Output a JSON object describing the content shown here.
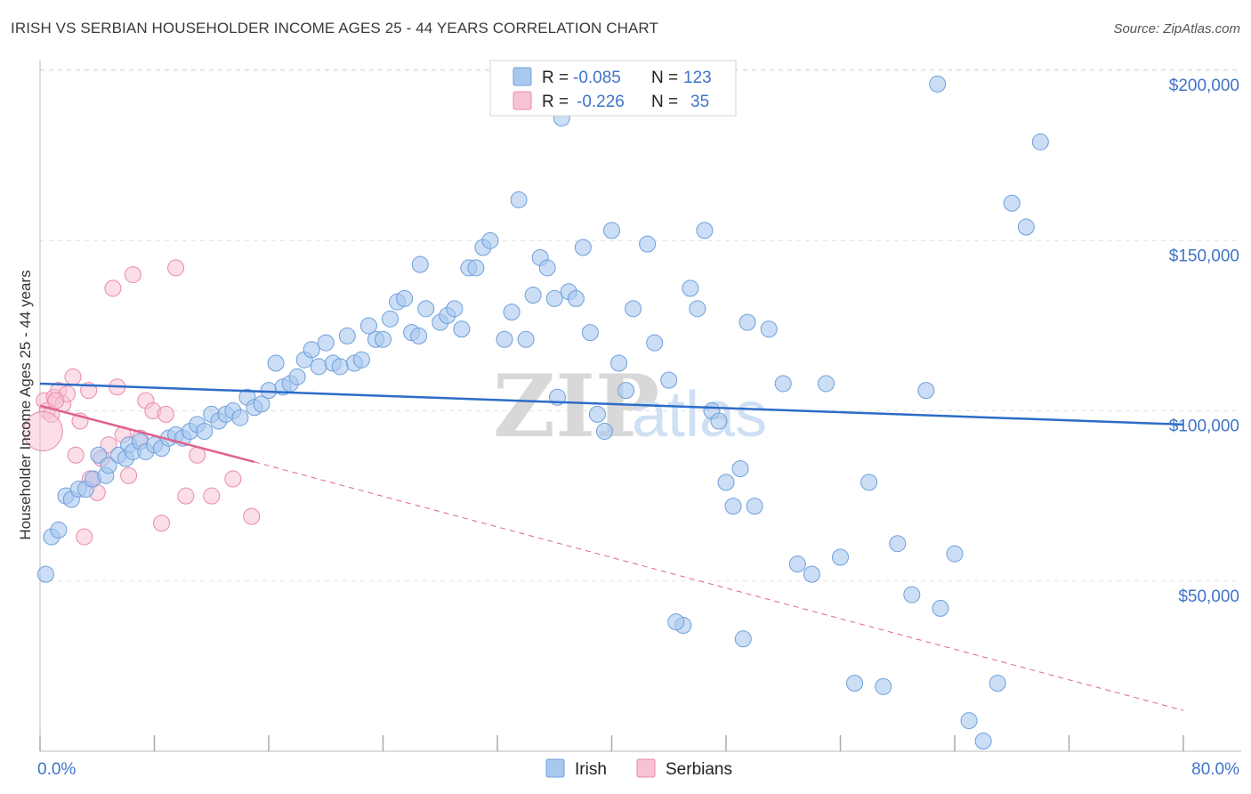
{
  "header": {
    "title": "IRISH VS SERBIAN HOUSEHOLDER INCOME AGES 25 - 44 YEARS CORRELATION CHART",
    "source": "Source: ZipAtlas.com"
  },
  "legend": {
    "rows": [
      {
        "r_label": "R =",
        "r_value": "-0.085",
        "n_label": "N =",
        "n_value": "123"
      },
      {
        "r_label": "R =",
        "r_value": "-0.226",
        "n_label": "N =",
        "n_value": "35"
      }
    ]
  },
  "bottom_legend": [
    "Irish",
    "Serbians"
  ],
  "watermark": {
    "zip": "ZIP",
    "atlas": "atlas"
  },
  "colors": {
    "irish_fill": "#a9c8ee",
    "irish_stroke": "#6f9fdb",
    "irish_line": "#2d6cc9",
    "serbian_fill": "#f7c3d3",
    "serbian_stroke": "#e98aa8",
    "serbian_line": "#e0628e",
    "axis_text": "#3f74c8",
    "grid": "#e3e3e3"
  },
  "chart_data": {
    "type": "scatter",
    "title": "IRISH VS SERBIAN HOUSEHOLDER INCOME AGES 25 - 44 YEARS CORRELATION CHART",
    "xlabel": "",
    "ylabel": "Householder Income Ages 25 - 44 years",
    "xlim": [
      0,
      80
    ],
    "ylim": [
      0,
      205000
    ],
    "x_tick_labels": [
      {
        "value": 0,
        "label": "0.0%"
      },
      {
        "value": 80,
        "label": "80.0%"
      }
    ],
    "y_ticks": [
      {
        "value": 50000,
        "label": "$50,000"
      },
      {
        "value": 100000,
        "label": "$100,000"
      },
      {
        "value": 150000,
        "label": "$150,000"
      },
      {
        "value": 200000,
        "label": "$200,000"
      }
    ],
    "series": [
      {
        "name": "Irish",
        "R": -0.085,
        "N": 123,
        "trend": {
          "x0": 0,
          "y0": 108000,
          "x1": 80,
          "y1": 96000
        },
        "points": [
          [
            0.4,
            52000
          ],
          [
            0.8,
            63000
          ],
          [
            1.3,
            65000
          ],
          [
            1.8,
            75000
          ],
          [
            2.2,
            74000
          ],
          [
            2.7,
            77000
          ],
          [
            3.2,
            77000
          ],
          [
            3.7,
            80000
          ],
          [
            4.1,
            87000
          ],
          [
            4.6,
            81000
          ],
          [
            4.8,
            84000
          ],
          [
            5.5,
            87000
          ],
          [
            6.0,
            86000
          ],
          [
            6.2,
            90000
          ],
          [
            6.5,
            88000
          ],
          [
            7.0,
            91000
          ],
          [
            7.4,
            88000
          ],
          [
            8.0,
            90000
          ],
          [
            8.5,
            89000
          ],
          [
            9.0,
            92000
          ],
          [
            9.5,
            93000
          ],
          [
            10.0,
            92000
          ],
          [
            10.5,
            94000
          ],
          [
            11.0,
            96000
          ],
          [
            11.5,
            94000
          ],
          [
            12.0,
            99000
          ],
          [
            12.5,
            97000
          ],
          [
            13.0,
            99000
          ],
          [
            13.5,
            100000
          ],
          [
            14.0,
            98000
          ],
          [
            14.5,
            104000
          ],
          [
            15.0,
            101000
          ],
          [
            15.5,
            102000
          ],
          [
            16.0,
            106000
          ],
          [
            16.5,
            114000
          ],
          [
            17.0,
            107000
          ],
          [
            17.5,
            108000
          ],
          [
            18.0,
            110000
          ],
          [
            18.5,
            115000
          ],
          [
            19.0,
            118000
          ],
          [
            19.5,
            113000
          ],
          [
            20.0,
            120000
          ],
          [
            20.5,
            114000
          ],
          [
            21.0,
            113000
          ],
          [
            21.5,
            122000
          ],
          [
            22.0,
            114000
          ],
          [
            22.5,
            115000
          ],
          [
            23.0,
            125000
          ],
          [
            23.5,
            121000
          ],
          [
            24.0,
            121000
          ],
          [
            24.5,
            127000
          ],
          [
            25.0,
            132000
          ],
          [
            25.5,
            133000
          ],
          [
            26.0,
            123000
          ],
          [
            26.5,
            122000
          ],
          [
            27.0,
            130000
          ],
          [
            28.0,
            126000
          ],
          [
            28.5,
            128000
          ],
          [
            29.0,
            130000
          ],
          [
            29.5,
            124000
          ],
          [
            30.0,
            142000
          ],
          [
            31.0,
            148000
          ],
          [
            31.5,
            150000
          ],
          [
            32.5,
            121000
          ],
          [
            33.0,
            129000
          ],
          [
            34.0,
            121000
          ],
          [
            34.5,
            134000
          ],
          [
            35.0,
            145000
          ],
          [
            35.5,
            142000
          ],
          [
            36.0,
            133000
          ],
          [
            36.5,
            186000
          ],
          [
            37.0,
            135000
          ],
          [
            37.5,
            133000
          ],
          [
            38.0,
            148000
          ],
          [
            38.5,
            123000
          ],
          [
            39.0,
            99000
          ],
          [
            39.5,
            94000
          ],
          [
            40.0,
            153000
          ],
          [
            40.5,
            114000
          ],
          [
            41.0,
            106000
          ],
          [
            41.5,
            130000
          ],
          [
            42.0,
            192000
          ],
          [
            42.5,
            149000
          ],
          [
            43.0,
            120000
          ],
          [
            44.0,
            109000
          ],
          [
            45.0,
            37000
          ],
          [
            45.5,
            136000
          ],
          [
            46.0,
            130000
          ],
          [
            46.5,
            153000
          ],
          [
            47.0,
            100000
          ],
          [
            47.5,
            97000
          ],
          [
            48.0,
            79000
          ],
          [
            48.5,
            72000
          ],
          [
            49.0,
            83000
          ],
          [
            49.5,
            126000
          ],
          [
            50.0,
            72000
          ],
          [
            51.0,
            124000
          ],
          [
            52.0,
            108000
          ],
          [
            53.0,
            55000
          ],
          [
            54.0,
            52000
          ],
          [
            55.0,
            108000
          ],
          [
            56.0,
            57000
          ],
          [
            57.0,
            20000
          ],
          [
            58.0,
            79000
          ],
          [
            59.0,
            19000
          ],
          [
            60.0,
            61000
          ],
          [
            61.0,
            46000
          ],
          [
            62.0,
            106000
          ],
          [
            63.0,
            42000
          ],
          [
            64.0,
            58000
          ],
          [
            65.0,
            9000
          ],
          [
            66.0,
            3000
          ],
          [
            67.0,
            20000
          ],
          [
            68.0,
            161000
          ],
          [
            69.0,
            154000
          ],
          [
            70.0,
            179000
          ],
          [
            62.8,
            196000
          ],
          [
            36.2,
            104000
          ],
          [
            30.5,
            142000
          ],
          [
            33.5,
            162000
          ],
          [
            26.6,
            143000
          ],
          [
            44.5,
            38000
          ],
          [
            49.2,
            33000
          ]
        ]
      },
      {
        "name": "Serbians",
        "R": -0.226,
        "N": 35,
        "trend": {
          "x0": 0,
          "y0": 101500,
          "x1": 15,
          "y1": 85000,
          "dashed_to": {
            "x": 80,
            "y": 12000
          }
        },
        "points": [
          [
            0.3,
            103000
          ],
          [
            0.5,
            100000
          ],
          [
            0.8,
            99000
          ],
          [
            1.0,
            104000
          ],
          [
            1.3,
            106000
          ],
          [
            1.6,
            102000
          ],
          [
            1.9,
            105000
          ],
          [
            2.3,
            110000
          ],
          [
            2.5,
            87000
          ],
          [
            2.8,
            97000
          ],
          [
            3.1,
            63000
          ],
          [
            3.4,
            106000
          ],
          [
            3.7,
            80000
          ],
          [
            4.0,
            76000
          ],
          [
            4.3,
            86000
          ],
          [
            4.8,
            90000
          ],
          [
            5.1,
            136000
          ],
          [
            5.4,
            107000
          ],
          [
            5.8,
            93000
          ],
          [
            6.2,
            81000
          ],
          [
            6.5,
            140000
          ],
          [
            7.0,
            92000
          ],
          [
            7.4,
            103000
          ],
          [
            7.9,
            100000
          ],
          [
            8.5,
            67000
          ],
          [
            8.8,
            99000
          ],
          [
            9.5,
            142000
          ],
          [
            10.2,
            75000
          ],
          [
            11.0,
            87000
          ],
          [
            12.0,
            75000
          ],
          [
            13.5,
            80000
          ],
          [
            14.8,
            69000
          ],
          [
            3.5,
            80000
          ],
          [
            1.1,
            103000
          ],
          [
            0.2,
            94000
          ]
        ]
      }
    ]
  }
}
